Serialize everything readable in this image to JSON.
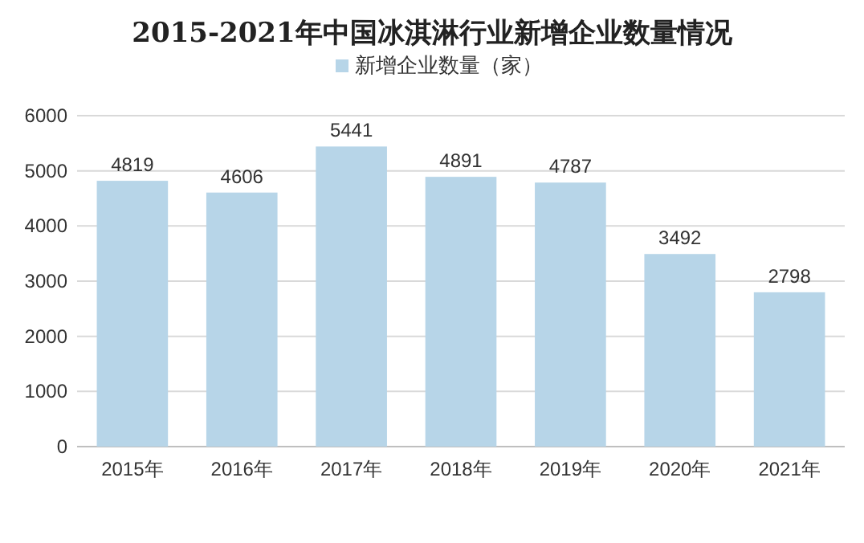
{
  "chart_data": {
    "type": "bar",
    "title": "2015-2021年中国冰淇淋行业新增企业数量情况",
    "categories": [
      "2015年",
      "2016年",
      "2017年",
      "2018年",
      "2019年",
      "2020年",
      "2021年"
    ],
    "series": [
      {
        "name": "新增企业数量（家）",
        "color": "#b7d5e8",
        "values": [
          4819,
          4606,
          5441,
          4891,
          4787,
          3492,
          2798
        ]
      }
    ],
    "ylim": [
      0,
      6000
    ],
    "yticks": [
      0,
      1000,
      2000,
      3000,
      4000,
      5000,
      6000
    ],
    "grid": "y",
    "legend": "top",
    "data_labels": true
  }
}
